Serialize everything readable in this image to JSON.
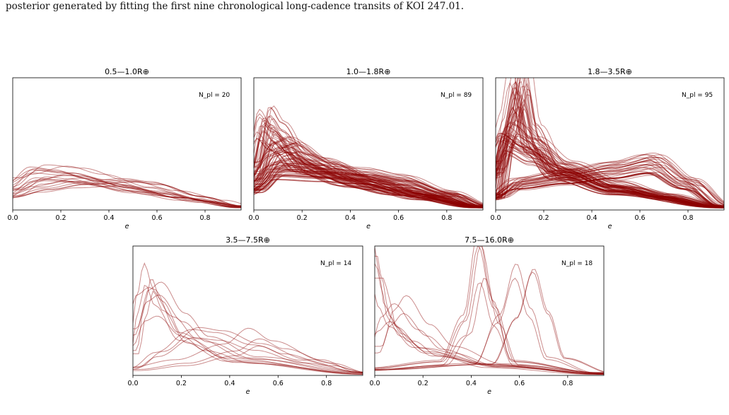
{
  "caption": "posterior generated by fitting the first nine chronological long-cadence transits of KOI 247.01.",
  "chart_data": [
    {
      "type": "line",
      "title": "0.5—1.0R⊕",
      "xlabel": "e",
      "annotation": "N_pl = 20",
      "xlim": [
        0.0,
        0.95
      ],
      "ylim": [
        0,
        1
      ],
      "xticks": [
        "0.0",
        "0.2",
        "0.4",
        "0.6",
        "0.8"
      ],
      "n_curves": 20,
      "series": [
        {
          "x": [
            0,
            0.1,
            0.2,
            0.3,
            0.5,
            0.7,
            0.95
          ],
          "y": [
            0.18,
            0.3,
            0.28,
            0.24,
            0.16,
            0.09,
            0.02
          ]
        },
        {
          "x": [
            0,
            0.1,
            0.25,
            0.4,
            0.6,
            0.8,
            0.95
          ],
          "y": [
            0.12,
            0.22,
            0.27,
            0.22,
            0.14,
            0.07,
            0.02
          ]
        },
        {
          "x": [
            0,
            0.15,
            0.3,
            0.5,
            0.6,
            0.8,
            0.95
          ],
          "y": [
            0.1,
            0.16,
            0.2,
            0.22,
            0.2,
            0.1,
            0.03
          ]
        },
        {
          "x": [
            0,
            0.1,
            0.25,
            0.45,
            0.65,
            0.85,
            0.95
          ],
          "y": [
            0.2,
            0.28,
            0.26,
            0.18,
            0.12,
            0.06,
            0.03
          ]
        }
      ]
    },
    {
      "type": "line",
      "title": "1.0—1.8R⊕",
      "xlabel": "e",
      "annotation": "N_pl = 89",
      "xlim": [
        0.0,
        0.95
      ],
      "ylim": [
        0,
        1
      ],
      "xticks": [
        "0.0",
        "0.2",
        "0.4",
        "0.6",
        "0.8"
      ],
      "n_curves": 89,
      "series": [
        {
          "x": [
            0,
            0.05,
            0.1,
            0.2,
            0.4,
            0.6,
            0.95
          ],
          "y": [
            0.3,
            0.65,
            0.55,
            0.35,
            0.22,
            0.14,
            0.02
          ]
        },
        {
          "x": [
            0,
            0.1,
            0.15,
            0.3,
            0.5,
            0.7,
            0.95
          ],
          "y": [
            0.2,
            0.42,
            0.45,
            0.32,
            0.2,
            0.1,
            0.02
          ]
        },
        {
          "x": [
            0,
            0.1,
            0.3,
            0.45,
            0.6,
            0.8,
            0.95
          ],
          "y": [
            0.15,
            0.3,
            0.28,
            0.26,
            0.22,
            0.12,
            0.03
          ]
        }
      ]
    },
    {
      "type": "line",
      "title": "1.8—3.5R⊕",
      "xlabel": "e",
      "annotation": "N_pl = 95",
      "xlim": [
        0.0,
        0.95
      ],
      "ylim": [
        0,
        1
      ],
      "xticks": [
        "0.0",
        "0.2",
        "0.4",
        "0.6",
        "0.8"
      ],
      "n_curves": 95,
      "series": [
        {
          "x": [
            0,
            0.05,
            0.1,
            0.15,
            0.25,
            0.5,
            0.95
          ],
          "y": [
            0.1,
            0.6,
            0.98,
            0.55,
            0.3,
            0.15,
            0.02
          ]
        },
        {
          "x": [
            0,
            0.05,
            0.15,
            0.3,
            0.5,
            0.7,
            0.95
          ],
          "y": [
            0.3,
            0.55,
            0.45,
            0.3,
            0.18,
            0.1,
            0.02
          ]
        },
        {
          "x": [
            0,
            0.1,
            0.3,
            0.5,
            0.65,
            0.8,
            0.95
          ],
          "y": [
            0.1,
            0.2,
            0.25,
            0.3,
            0.35,
            0.2,
            0.03
          ]
        }
      ]
    },
    {
      "type": "line",
      "title": "3.5—7.5R⊕",
      "xlabel": "e",
      "annotation": "N_pl = 14",
      "xlim": [
        0.0,
        0.95
      ],
      "ylim": [
        0,
        1
      ],
      "xticks": [
        "0.0",
        "0.2",
        "0.4",
        "0.6",
        "0.8"
      ],
      "n_curves": 14,
      "series": [
        {
          "x": [
            0,
            0.03,
            0.06,
            0.1,
            0.2,
            0.4,
            0.95
          ],
          "y": [
            0.2,
            0.55,
            0.78,
            0.6,
            0.3,
            0.12,
            0.01
          ]
        },
        {
          "x": [
            0,
            0.05,
            0.1,
            0.2,
            0.3,
            0.5,
            0.95
          ],
          "y": [
            0.3,
            0.55,
            0.6,
            0.4,
            0.25,
            0.12,
            0.02
          ]
        },
        {
          "x": [
            0,
            0.1,
            0.25,
            0.35,
            0.5,
            0.7,
            0.95
          ],
          "y": [
            0.05,
            0.15,
            0.3,
            0.28,
            0.2,
            0.1,
            0.02
          ]
        },
        {
          "x": [
            0,
            0.2,
            0.4,
            0.5,
            0.6,
            0.8,
            0.95
          ],
          "y": [
            0.05,
            0.1,
            0.2,
            0.3,
            0.22,
            0.1,
            0.02
          ]
        }
      ]
    },
    {
      "type": "line",
      "title": "7.5—16.0R⊕",
      "xlabel": "e",
      "annotation": "N_pl = 18",
      "xlim": [
        0.0,
        0.95
      ],
      "ylim": [
        0,
        1
      ],
      "xticks": [
        "0.0",
        "0.2",
        "0.4",
        "0.6",
        "0.8"
      ],
      "n_curves": 18,
      "series": [
        {
          "x": [
            0,
            0.02,
            0.05,
            0.1,
            0.2,
            0.5,
            0.95
          ],
          "y": [
            1.0,
            0.8,
            0.5,
            0.35,
            0.2,
            0.08,
            0.01
          ]
        },
        {
          "x": [
            0,
            0.3,
            0.4,
            0.46,
            0.52,
            0.6,
            0.95
          ],
          "y": [
            0.05,
            0.1,
            0.4,
            0.95,
            0.5,
            0.1,
            0.02
          ]
        },
        {
          "x": [
            0,
            0.45,
            0.55,
            0.62,
            0.68,
            0.75,
            0.95
          ],
          "y": [
            0.05,
            0.1,
            0.5,
            0.92,
            0.55,
            0.15,
            0.02
          ]
        },
        {
          "x": [
            0,
            0.05,
            0.1,
            0.2,
            0.3,
            0.5,
            0.95
          ],
          "y": [
            0.2,
            0.45,
            0.55,
            0.35,
            0.2,
            0.08,
            0.01
          ]
        }
      ]
    }
  ]
}
